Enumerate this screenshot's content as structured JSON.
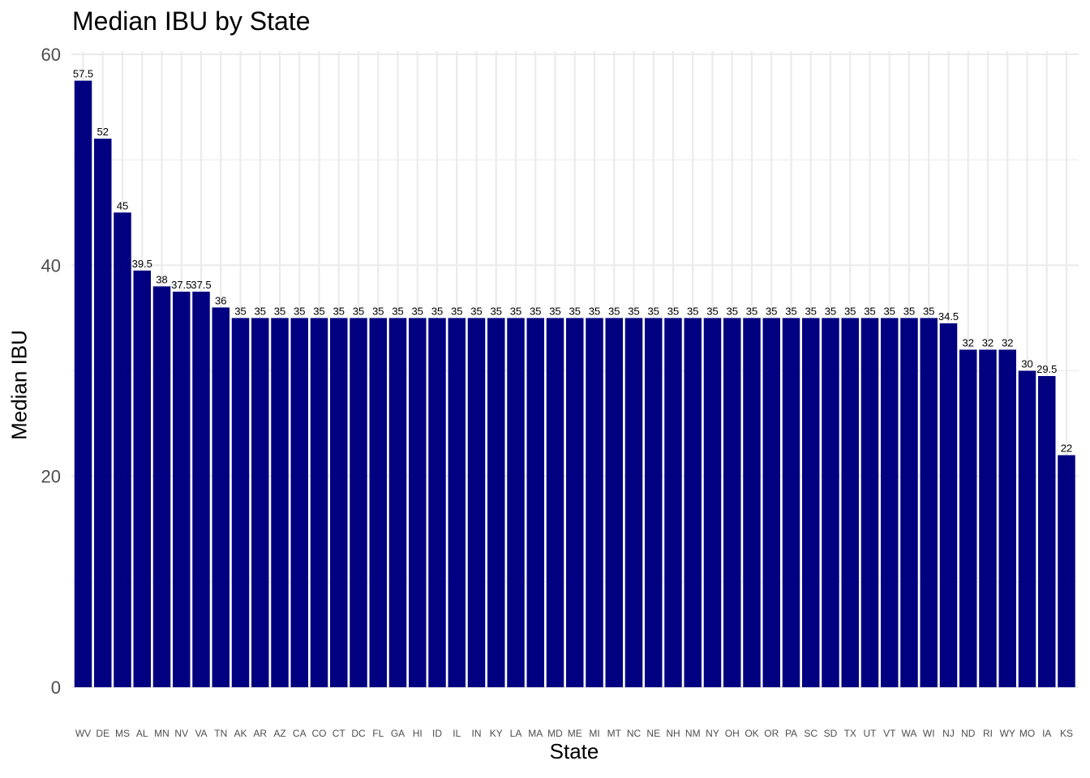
{
  "chart_data": {
    "type": "bar",
    "title": "Median IBU by State",
    "xlabel": "State",
    "ylabel": "Median IBU",
    "ylim": [
      0,
      60
    ],
    "y_ticks": [
      0,
      20,
      40,
      60
    ],
    "grid": true,
    "bar_color": "#000080",
    "categories": [
      "WV",
      "DE",
      "MS",
      "AL",
      "MN",
      "NV",
      "VA",
      "TN",
      "AK",
      "AR",
      "AZ",
      "CA",
      "CO",
      "CT",
      "DC",
      "FL",
      "GA",
      "HI",
      "ID",
      "IL",
      "IN",
      "KY",
      "LA",
      "MA",
      "MD",
      "ME",
      "MI",
      "MT",
      "NC",
      "NE",
      "NH",
      "NM",
      "NY",
      "OH",
      "OK",
      "OR",
      "PA",
      "SC",
      "SD",
      "TX",
      "UT",
      "VT",
      "WA",
      "WI",
      "NJ",
      "ND",
      "RI",
      "WY",
      "MO",
      "IA",
      "KS"
    ],
    "values": [
      57.5,
      52,
      45,
      39.5,
      38,
      37.5,
      37.5,
      36,
      35,
      35,
      35,
      35,
      35,
      35,
      35,
      35,
      35,
      35,
      35,
      35,
      35,
      35,
      35,
      35,
      35,
      35,
      35,
      35,
      35,
      35,
      35,
      35,
      35,
      35,
      35,
      35,
      35,
      35,
      35,
      35,
      35,
      35,
      35,
      35,
      34.5,
      32,
      32,
      32,
      30,
      29.5,
      22
    ],
    "value_labels": [
      "57.5",
      "52",
      "45",
      "39.5",
      "38",
      "37.5",
      "37.5",
      "36",
      "35",
      "35",
      "35",
      "35",
      "35",
      "35",
      "35",
      "35",
      "35",
      "35",
      "35",
      "35",
      "35",
      "35",
      "35",
      "35",
      "35",
      "35",
      "35",
      "35",
      "35",
      "35",
      "35",
      "35",
      "35",
      "35",
      "35",
      "35",
      "35",
      "35",
      "35",
      "35",
      "35",
      "35",
      "35",
      "35",
      "34.5",
      "32",
      "32",
      "32",
      "30",
      "29.5",
      "22"
    ]
  }
}
